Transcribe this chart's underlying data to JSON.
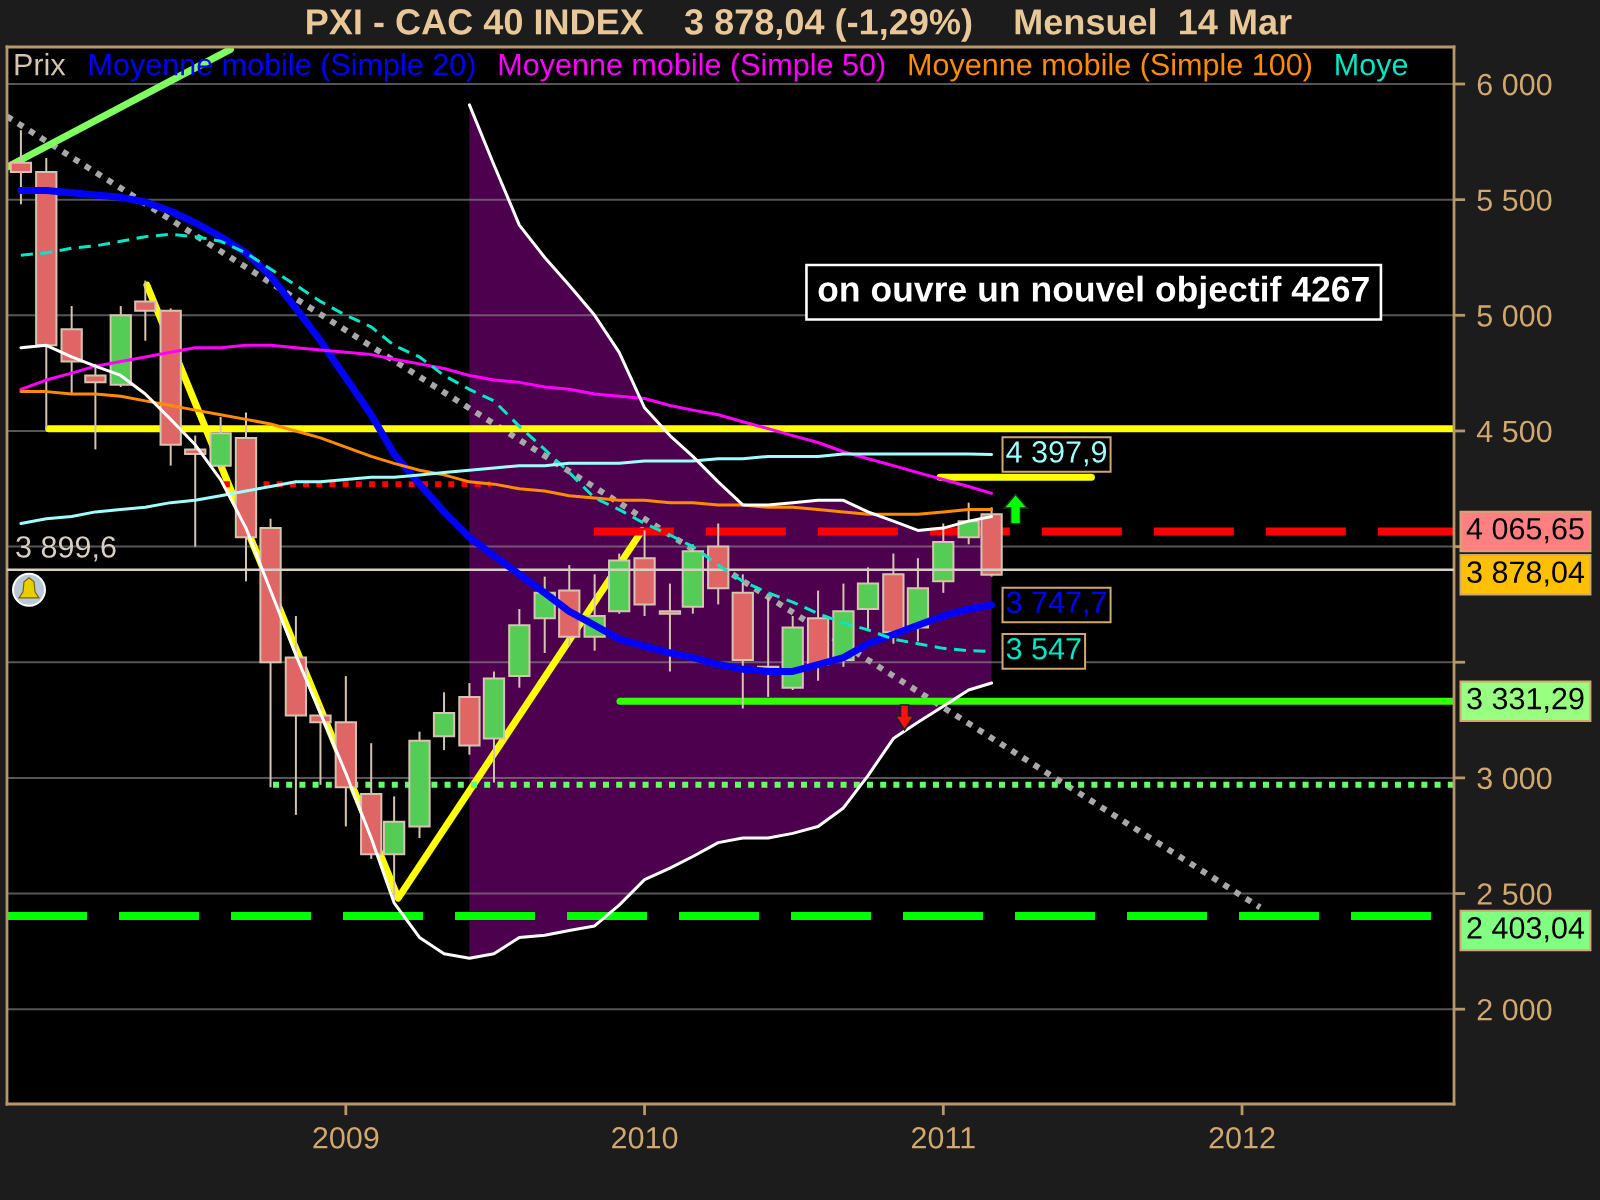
{
  "chart_data": {
    "type": "candlestick",
    "title": "PXI - CAC 40 INDEX    3 878,04 (-1,29%)    Mensuel  14 Mar",
    "x": [
      "2007-12",
      "2008-01",
      "2008-02",
      "2008-03",
      "2008-04",
      "2008-05",
      "2008-06",
      "2008-07",
      "2008-08",
      "2008-09",
      "2008-10",
      "2008-11",
      "2008-12",
      "2009-01",
      "2009-02",
      "2009-03",
      "2009-04",
      "2009-05",
      "2009-06",
      "2009-07",
      "2009-08",
      "2009-09",
      "2009-10",
      "2009-11",
      "2009-12",
      "2010-01",
      "2010-02",
      "2010-03",
      "2010-04",
      "2010-05",
      "2010-06",
      "2010-07",
      "2010-08",
      "2010-09",
      "2010-10",
      "2010-11",
      "2010-12",
      "2011-01",
      "2011-02",
      "2011-03"
    ],
    "xlim": [
      "2007-11-14",
      "2012-09-16"
    ],
    "xticks": [
      "2009",
      "2010",
      "2011",
      "2012"
    ],
    "ylim": [
      1590,
      6160
    ],
    "yticks": [
      {
        "value": 2000,
        "label": "2 000"
      },
      {
        "value": 2500,
        "label": "2 500"
      },
      {
        "value": 3000,
        "label": "3 000"
      },
      {
        "value": 3500,
        "label": null
      },
      {
        "value": 4000,
        "label": null
      },
      {
        "value": 4500,
        "label": "4 500"
      },
      {
        "value": 5000,
        "label": "5 000"
      },
      {
        "value": 5500,
        "label": "5 500"
      },
      {
        "value": 6000,
        "label": "6 000"
      }
    ],
    "grid": "y",
    "legend": "top left",
    "series": [
      {
        "name": "Prix",
        "color": "#d4c4b0",
        "colors": [
          "#e06666",
          "#e06666",
          "#e06666",
          "#e06666",
          "#55cc55",
          "#e06666",
          "#e06666",
          "#e06666",
          "#55cc55",
          "#e06666",
          "#e06666",
          "#e06666",
          "#e06666",
          "#e06666",
          "#e06666",
          "#55cc55",
          "#55cc55",
          "#55cc55",
          "#e06666",
          "#55cc55",
          "#55cc55",
          "#55cc55",
          "#e06666",
          "#55cc55",
          "#55cc55",
          "#e06666",
          "#e06666",
          "#55cc55",
          "#e06666",
          "#e06666",
          "#e06666",
          "#55cc55",
          "#e06666",
          "#55cc55",
          "#55cc55",
          "#e06666",
          "#55cc55",
          "#55cc55",
          "#55cc55",
          "#e06666"
        ],
        "ohlc": [
          [
            5660,
            5800,
            5480,
            5620
          ],
          [
            5620,
            5680,
            4510,
            4870
          ],
          [
            4940,
            5040,
            4660,
            4800
          ],
          [
            4740,
            4790,
            4420,
            4710
          ],
          [
            4700,
            5040,
            4690,
            5000
          ],
          [
            5060,
            5150,
            4890,
            5020
          ],
          [
            5020,
            5030,
            4350,
            4440
          ],
          [
            4420,
            4480,
            4000,
            4400
          ],
          [
            4350,
            4560,
            4340,
            4490
          ],
          [
            4470,
            4580,
            3850,
            4040
          ],
          [
            4080,
            4120,
            2960,
            3500
          ],
          [
            3520,
            3700,
            2840,
            3270
          ],
          [
            3270,
            3310,
            2970,
            3240
          ],
          [
            3240,
            3440,
            2790,
            2960
          ],
          [
            2930,
            3150,
            2650,
            2670
          ],
          [
            2670,
            2920,
            2470,
            2810
          ],
          [
            2790,
            3200,
            2740,
            3160
          ],
          [
            3180,
            3370,
            3120,
            3280
          ],
          [
            3350,
            3410,
            3100,
            3140
          ],
          [
            3170,
            3460,
            2980,
            3430
          ],
          [
            3440,
            3730,
            3390,
            3660
          ],
          [
            3690,
            3870,
            3540,
            3800
          ],
          [
            3810,
            3920,
            3570,
            3610
          ],
          [
            3610,
            3880,
            3550,
            3700
          ],
          [
            3720,
            3970,
            3710,
            3940
          ],
          [
            3950,
            4070,
            3700,
            3750
          ],
          [
            3720,
            3840,
            3460,
            3710
          ],
          [
            3740,
            4010,
            3710,
            3980
          ],
          [
            4000,
            4100,
            3750,
            3820
          ],
          [
            3800,
            3880,
            3300,
            3510
          ],
          [
            3480,
            3780,
            3350,
            3470
          ],
          [
            3390,
            3700,
            3380,
            3650
          ],
          [
            3690,
            3810,
            3420,
            3490
          ],
          [
            3510,
            3840,
            3480,
            3720
          ],
          [
            3730,
            3910,
            3640,
            3840
          ],
          [
            3880,
            3970,
            3580,
            3630
          ],
          [
            3650,
            3950,
            3590,
            3820
          ],
          [
            3850,
            4100,
            3800,
            4020
          ],
          [
            4040,
            4190,
            4010,
            4110
          ],
          [
            4140,
            4170,
            3870,
            3878.04
          ]
        ],
        "value_labels": [
          null,
          null,
          null,
          null,
          null,
          null,
          null,
          null,
          null,
          null,
          null,
          null,
          null,
          null,
          null,
          null,
          null,
          null,
          null,
          null,
          null,
          null,
          null,
          null,
          null,
          null,
          null,
          null,
          null,
          null,
          null,
          null,
          null,
          null,
          null,
          null,
          null,
          null,
          null,
          "3 878,04"
        ]
      },
      {
        "name": "Moyenne mobile (Simple 20)",
        "type": "line",
        "color": "#0000ff",
        "values": [
          5540,
          5540,
          5530,
          5520,
          5510,
          5490,
          5450,
          5400,
          5340,
          5270,
          5170,
          5030,
          4890,
          4730,
          4570,
          4400,
          4270,
          4150,
          4040,
          3960,
          3880,
          3800,
          3720,
          3660,
          3600,
          3570,
          3540,
          3520,
          3490,
          3470,
          3460,
          3460,
          3490,
          3520,
          3580,
          3620,
          3660,
          3700,
          3730,
          3747.7
        ],
        "lower": [
          null,
          null,
          null,
          null,
          null,
          null,
          null,
          null,
          null,
          null,
          null,
          null,
          null,
          null,
          null,
          null,
          null,
          null,
          2220,
          2240,
          2310,
          2320,
          2340,
          2360,
          2450,
          2560,
          2610,
          2660,
          2720,
          2740,
          2740,
          2760,
          2790,
          2870,
          3010,
          3170,
          3240,
          3310,
          3380,
          3410
        ],
        "upper": [
          null,
          null,
          null,
          null,
          null,
          null,
          null,
          null,
          null,
          null,
          null,
          null,
          null,
          null,
          null,
          null,
          null,
          null,
          5910,
          5650,
          5390,
          5250,
          5130,
          5000,
          4840,
          4600,
          4480,
          4390,
          4280,
          4180,
          4180,
          4190,
          4200,
          4200,
          4150,
          4110,
          4070,
          4080,
          4110,
          4130
        ],
        "value_labels": [
          null,
          null,
          null,
          null,
          null,
          null,
          null,
          null,
          null,
          null,
          null,
          null,
          null,
          null,
          null,
          null,
          null,
          null,
          null,
          null,
          null,
          null,
          null,
          null,
          null,
          null,
          null,
          null,
          null,
          null,
          null,
          null,
          null,
          null,
          null,
          null,
          null,
          null,
          null,
          "3 747,7"
        ]
      },
      {
        "name": "Moyenne mobile (Simple 50)",
        "type": "line",
        "color": "#ff00ff",
        "values": [
          4680,
          4720,
          4750,
          4780,
          4800,
          4820,
          4840,
          4860,
          4860,
          4870,
          4870,
          4860,
          4850,
          4840,
          4830,
          4810,
          4790,
          4770,
          4740,
          4720,
          4710,
          4690,
          4680,
          4660,
          4650,
          4640,
          4610,
          4590,
          4570,
          4540,
          4510,
          4480,
          4450,
          4410,
          4380,
          4350,
          4320,
          4290,
          4260,
          4230
        ]
      },
      {
        "name": "Moyenne mobile (Simple 100)",
        "type": "line",
        "color": "#ff8c00",
        "values": [
          4670,
          4670,
          4660,
          4660,
          4650,
          4630,
          4610,
          4590,
          4570,
          4550,
          4530,
          4500,
          4470,
          4430,
          4390,
          4360,
          4330,
          4310,
          4280,
          4270,
          4250,
          4240,
          4220,
          4210,
          4200,
          4200,
          4190,
          4190,
          4180,
          4180,
          4170,
          4170,
          4160,
          4150,
          4140,
          4140,
          4140,
          4150,
          4160,
          4160
        ]
      },
      {
        "name": "Moye",
        "type": "line",
        "color": "#00e8c8",
        "line_style": "dashed",
        "values": [
          5260,
          5270,
          5290,
          5300,
          5320,
          5340,
          5350,
          5340,
          5320,
          5270,
          5200,
          5130,
          5060,
          5000,
          4950,
          4870,
          4820,
          4740,
          4680,
          4630,
          4520,
          4420,
          4320,
          4210,
          4160,
          4100,
          4050,
          4000,
          3920,
          3850,
          3800,
          3760,
          3710,
          3670,
          3640,
          3600,
          3580,
          3560,
          3550,
          3547
        ],
        "value_labels": [
          null,
          null,
          null,
          null,
          null,
          null,
          null,
          null,
          null,
          null,
          null,
          null,
          null,
          null,
          null,
          null,
          null,
          null,
          null,
          null,
          null,
          null,
          null,
          null,
          null,
          null,
          null,
          null,
          null,
          null,
          null,
          null,
          null,
          null,
          null,
          null,
          null,
          null,
          null,
          "3 547"
        ]
      },
      {
        "type": "line",
        "color": "#a0ffff",
        "values": [
          4100,
          4120,
          4130,
          4150,
          4160,
          4170,
          4190,
          4200,
          4220,
          4240,
          4260,
          4280,
          4280,
          4290,
          4300,
          4300,
          4310,
          4320,
          4330,
          4340,
          4350,
          4350,
          4360,
          4360,
          4360,
          4370,
          4370,
          4370,
          4380,
          4380,
          4390,
          4390,
          4390,
          4400,
          4400,
          4400,
          4400,
          4400,
          4400,
          4397.9
        ],
        "value_labels": [
          null,
          null,
          null,
          null,
          null,
          null,
          null,
          null,
          null,
          null,
          null,
          null,
          null,
          null,
          null,
          null,
          null,
          null,
          null,
          null,
          null,
          null,
          null,
          null,
          null,
          null,
          null,
          null,
          null,
          null,
          null,
          null,
          null,
          null,
          null,
          null,
          null,
          null,
          null,
          "4 397,9"
        ]
      },
      {
        "type": "line",
        "color": "#ffffff",
        "values": [
          4860,
          4870,
          4820,
          4780,
          4740,
          4660,
          4550,
          4440,
          4290,
          4080,
          3810,
          3530,
          3280,
          3020,
          2740,
          2460,
          2310,
          2240,
          2220,
          2240,
          2310,
          2320,
          2340,
          2360,
          2450,
          2560,
          2610,
          2660,
          2720,
          2740,
          2740,
          2760,
          2790,
          2870,
          3010,
          3170,
          3240,
          3310,
          3380,
          3410
        ]
      },
      {
        "type": "line",
        "color": "#ffffff",
        "values": [
          null,
          null,
          null,
          null,
          null,
          null,
          null,
          null,
          null,
          null,
          null,
          null,
          null,
          null,
          null,
          null,
          null,
          null,
          5910,
          5650,
          5390,
          5250,
          5130,
          5000,
          4840,
          4600,
          4480,
          4390,
          4280,
          4180,
          4180,
          4190,
          4200,
          4200,
          4150,
          4110,
          4070,
          4080,
          4110,
          4130
        ]
      },
      {
        "type": "line",
        "color": "#ffff00",
        "x": [
          "2008-05-03",
          "2009-03-06",
          "2009-12-29"
        ],
        "values": [
          5130,
          2480,
          4070
        ]
      },
      {
        "type": "line",
        "color": "#a8a8a8",
        "line_style": "dotted",
        "x": [
          "2007-11-14",
          "2012-01-23"
        ],
        "values": [
          5860,
          2440
        ]
      },
      {
        "type": "line",
        "color": "#80ff60",
        "x": [
          "2007-11-14",
          "2008-08-13"
        ],
        "values": [
          5640,
          6150
        ]
      },
      {
        "type": "line",
        "color": "#ffff00",
        "x": [
          "2008-01-04",
          "2012-09-16"
        ],
        "values": [
          4510,
          4510
        ]
      },
      {
        "type": "line",
        "color": "#ffff00",
        "x": [
          "2010-12-28",
          "2011-07-01"
        ],
        "values": [
          4300,
          4300
        ]
      },
      {
        "type": "line",
        "color": "#ff0000",
        "line_style": "dashed",
        "x": [
          "2009-10-31",
          "2012-09-16"
        ],
        "values": [
          4065.65,
          4065.65
        ],
        "value_labels": [
          null,
          "4 065,65"
        ]
      },
      {
        "type": "line",
        "color": "#ff0000",
        "line_style": "dotted",
        "x": [
          "2008-08-05",
          "2009-06-27"
        ],
        "values": [
          4270,
          4270
        ]
      },
      {
        "type": "line",
        "color": "#33ff00",
        "x": [
          "2009-12-02",
          "2012-09-16"
        ],
        "values": [
          3331.29,
          3331.29
        ],
        "value_labels": [
          null,
          "3 331,29"
        ]
      },
      {
        "type": "line",
        "color": "#66ff66",
        "line_style": "dotted",
        "x": [
          "2008-10-04",
          "2012-09-16"
        ],
        "values": [
          2970,
          2970
        ]
      },
      {
        "type": "line",
        "color": "#00ff00",
        "line_style": "dashed",
        "x": [
          "2007-11-14",
          "2012-09-16"
        ],
        "values": [
          2403.04,
          2403.04
        ],
        "value_labels": [
          null,
          "2 403,04"
        ]
      }
    ],
    "ref_lines": [
      {
        "axis": "y",
        "value": 3899.6,
        "label": "3 899,6",
        "color": "#d8d0c4"
      }
    ],
    "annotations": [
      "on ouvre un nouvel objectif 4267"
    ]
  }
}
